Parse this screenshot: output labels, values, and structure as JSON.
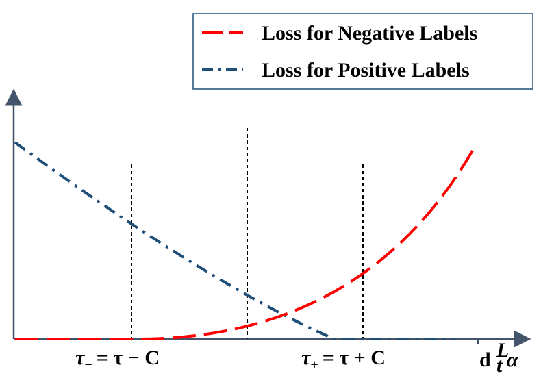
{
  "legend": {
    "items": [
      {
        "label": "Loss for Negative Labels",
        "color": "#ff0000",
        "style": "dashed"
      },
      {
        "label": "Loss for Positive Labels",
        "color": "#1f4e79",
        "style": "dash-dot"
      }
    ],
    "border_color": "#1f4e79"
  },
  "axis": {
    "color": "#44546a",
    "x_label": {
      "base": "d",
      "sub": "t",
      "sup": "L",
      "tail": "α"
    }
  },
  "markers": [
    {
      "name": "tau-minus",
      "sym": "τ",
      "sub": "−",
      "rhs": "= τ − C"
    },
    {
      "name": "tau",
      "sym": "",
      "sub": "",
      "rhs": ""
    },
    {
      "name": "tau-plus",
      "sym": "τ",
      "sub": "+",
      "rhs": "= τ + C"
    }
  ]
}
